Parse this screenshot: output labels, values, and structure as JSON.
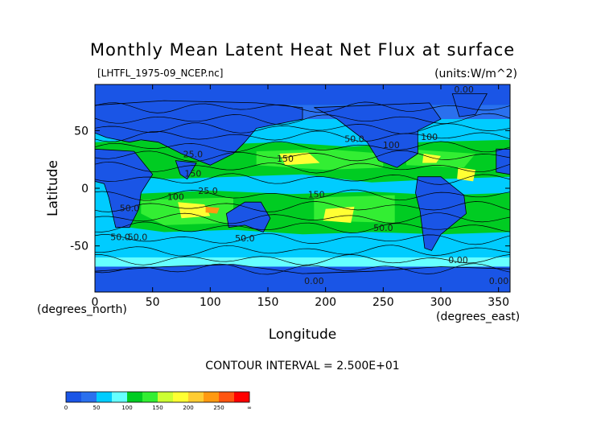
{
  "chart_data": {
    "type": "heatmap",
    "title": "Monthly Mean Latent Heat Net Flux at surface",
    "file_label": "[LHTFL_1975-09_NCEP.nc]",
    "units_label": "(units:W/m^2)",
    "xlabel": "Longitude",
    "ylabel": "Latitude",
    "x_unit_label": "(degrees_east)",
    "y_unit_label": "(degrees_north)",
    "xlim": [
      0,
      360
    ],
    "ylim": [
      -90,
      90
    ],
    "x_ticks": [
      0,
      50,
      100,
      150,
      200,
      250,
      300,
      350
    ],
    "y_ticks": [
      50,
      0,
      -50
    ],
    "contour_interval_label": "CONTOUR INTERVAL = 2.500E+01",
    "colorbar": {
      "levels": [
        0,
        25,
        50,
        75,
        100,
        125,
        150,
        175,
        200,
        225,
        250,
        275,
        300
      ],
      "tick_labels": [
        "0",
        "50",
        "100",
        "150",
        "200",
        "250",
        "∞"
      ],
      "colors": [
        "#1a55e6",
        "#2a70ee",
        "#00ccff",
        "#66ffff",
        "#00cc22",
        "#33ee33",
        "#ccff33",
        "#ffff33",
        "#ffcc33",
        "#ff9911",
        "#ff5511",
        "#ff0000"
      ]
    },
    "contour_labels": [
      "0.00",
      "50.0",
      "100",
      "150",
      "25.0",
      "0.00",
      "0.00",
      "50.0",
      "150",
      "50.0",
      "50.0",
      "100",
      "150",
      "25.0",
      "50.0",
      "0.00",
      "100",
      "50.0"
    ]
  }
}
